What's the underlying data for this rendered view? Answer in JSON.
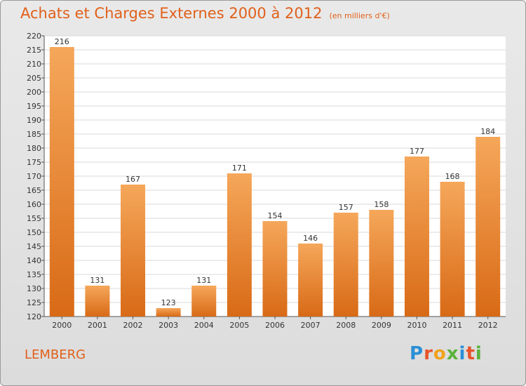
{
  "title": "Achats et Charges Externes 2000 à 2012",
  "subtitle": "(en milliers d'€)",
  "commune": "LEMBERG",
  "logo": {
    "text": "Proxiti",
    "letters": [
      {
        "ch": "P",
        "color": "#2b8fd6"
      },
      {
        "ch": "r",
        "color": "#e8542a"
      },
      {
        "ch": "o",
        "color": "#f2a21b"
      },
      {
        "ch": "x",
        "color": "#5ab23a"
      },
      {
        "ch": "i",
        "color": "#2b8fd6"
      },
      {
        "ch": "t",
        "color": "#e8542a"
      },
      {
        "ch": "i",
        "color": "#5ab23a"
      }
    ]
  },
  "colors": {
    "title": "#e0601a",
    "bar_top": "#f5a75a",
    "bar_bottom": "#d86a16",
    "plot_bg": "#ffffff",
    "grid": "#d8d8d8"
  },
  "chart_data": {
    "type": "bar",
    "categories": [
      "2000",
      "2001",
      "2002",
      "2003",
      "2004",
      "2005",
      "2006",
      "2007",
      "2008",
      "2009",
      "2010",
      "2011",
      "2012"
    ],
    "values": [
      216,
      131,
      167,
      123,
      131,
      171,
      154,
      146,
      157,
      158,
      177,
      168,
      184
    ],
    "ylim": [
      120,
      220
    ],
    "ytick_step": 5,
    "grid": true,
    "data_labels": true,
    "xlabel": "",
    "ylabel": ""
  }
}
